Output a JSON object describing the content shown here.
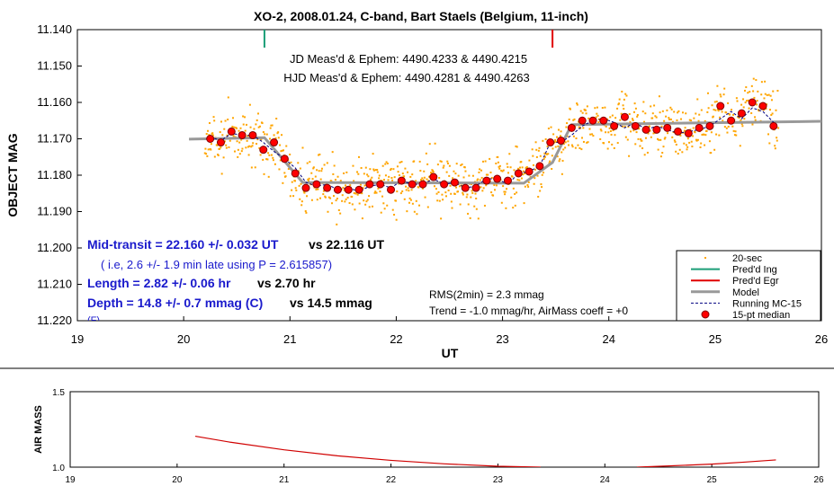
{
  "title": "XO-2, 2008.01.24, C-band, Bart Staels (Belgium, 11-inch)",
  "colors": {
    "scatter": "#ffa500",
    "ingress": "#1b9e77",
    "egress": "#e00000",
    "model": "#999999",
    "running": "#000080",
    "median_fill": "#ff0000",
    "median_stroke": "#800000",
    "airmass_line": "#d00000",
    "blue_text": "#1a1acc"
  },
  "jd_lines": [
    "JD Meas'd & Ephem: 4490.4233 & 4490.4215",
    "HJD Meas'd & Ephem: 4490.4281 & 4490.4263"
  ],
  "results": {
    "mid_transit": "Mid-transit = 22.160 +/- 0.032 UT",
    "mid_transit_ref": "vs 22.116 UT",
    "late_note": "( i.e, 2.6 +/- 1.9 min late using P = 2.615857)",
    "length": "Length = 2.82 +/- 0.06 hr",
    "length_ref": "vs 2.70 hr",
    "depth": "Depth = 14.8 +/- 0.7 mmag (C)",
    "depth_ref": "vs 14.5 mmag",
    "clipped": "(F)"
  },
  "stats": {
    "rms": "RMS(2min) = 2.3 mmag",
    "trend": "Trend = -1.0 mmag/hr, AirMass coeff = +0"
  },
  "legend": [
    {
      "label": "20-sec",
      "kind": "dot"
    },
    {
      "label": "Pred'd Ing",
      "kind": "ingress"
    },
    {
      "label": "Pred'd Egr",
      "kind": "egress"
    },
    {
      "label": "Model",
      "kind": "model"
    },
    {
      "label": "Running MC-15",
      "kind": "running"
    },
    {
      "label": "15-pt median",
      "kind": "median"
    }
  ],
  "chart_data": [
    {
      "type": "scatter",
      "title": "XO-2, 2008.01.24, C-band, Bart Staels (Belgium, 11-inch)",
      "xlabel": "UT",
      "ylabel": "OBJECT MAG",
      "xlim": [
        19,
        26
      ],
      "ylim": [
        11.14,
        11.22
      ],
      "y_inverted": true,
      "x_ticks": [
        "19",
        "20",
        "21",
        "22",
        "23",
        "24",
        "25",
        "26"
      ],
      "y_ticks": [
        "11.140",
        "11.150",
        "11.160",
        "11.170",
        "11.180",
        "11.190",
        "11.200",
        "11.210",
        "11.220"
      ],
      "grid": false,
      "legend_position": "bottom-right",
      "predicted_ingress_ut": 20.76,
      "predicted_egress_ut": 23.47,
      "series": [
        {
          "name": "Model",
          "x": [
            20.05,
            20.76,
            21.12,
            23.2,
            23.47,
            23.65,
            26.0
          ],
          "values": [
            11.1701,
            11.1697,
            11.182,
            11.1822,
            11.1765,
            11.1661,
            11.1652
          ]
        },
        {
          "name": "Running MC-15",
          "x": [
            20.25,
            20.35,
            20.45,
            20.55,
            20.65,
            20.75,
            20.85,
            20.95,
            21.05,
            21.15,
            21.25,
            21.35,
            21.45,
            21.55,
            21.65,
            21.75,
            21.85,
            21.95,
            22.05,
            22.15,
            22.25,
            22.35,
            22.45,
            22.55,
            22.65,
            22.75,
            22.85,
            22.95,
            23.05,
            23.15,
            23.25,
            23.35,
            23.45,
            23.55,
            23.65,
            23.75,
            23.85,
            23.95,
            24.05,
            24.15,
            24.25,
            24.35,
            24.45,
            24.55,
            24.65,
            24.75,
            24.85,
            24.95,
            25.05,
            25.15,
            25.25,
            25.35,
            25.45,
            25.55
          ],
          "values": [
            11.1695,
            11.1705,
            11.1685,
            11.169,
            11.169,
            11.171,
            11.1735,
            11.1755,
            11.178,
            11.182,
            11.183,
            11.1825,
            11.184,
            11.1835,
            11.1845,
            11.183,
            11.1825,
            11.1835,
            11.1815,
            11.1825,
            11.1825,
            11.181,
            11.1825,
            11.182,
            11.1835,
            11.183,
            11.181,
            11.181,
            11.1825,
            11.1795,
            11.179,
            11.1775,
            11.171,
            11.171,
            11.169,
            11.1665,
            11.165,
            11.1645,
            11.1655,
            11.167,
            11.1655,
            11.1675,
            11.1665,
            11.1675,
            11.1685,
            11.168,
            11.1675,
            11.1665,
            11.1645,
            11.1625,
            11.1645,
            11.1615,
            11.1625,
            11.1655
          ]
        },
        {
          "name": "15-pt median",
          "x": [
            20.25,
            20.35,
            20.45,
            20.55,
            20.65,
            20.75,
            20.85,
            20.95,
            21.05,
            21.15,
            21.25,
            21.35,
            21.45,
            21.55,
            21.65,
            21.75,
            21.85,
            21.95,
            22.05,
            22.15,
            22.25,
            22.35,
            22.45,
            22.55,
            22.65,
            22.75,
            22.85,
            22.95,
            23.05,
            23.15,
            23.25,
            23.35,
            23.45,
            23.55,
            23.65,
            23.75,
            23.85,
            23.95,
            24.05,
            24.15,
            24.25,
            24.35,
            24.45,
            24.55,
            24.65,
            24.75,
            24.85,
            24.95,
            25.05,
            25.15,
            25.25,
            25.35,
            25.45,
            25.55
          ],
          "values": [
            11.17,
            11.171,
            11.168,
            11.169,
            11.169,
            11.173,
            11.171,
            11.1755,
            11.1795,
            11.1835,
            11.1825,
            11.1835,
            11.184,
            11.184,
            11.184,
            11.1825,
            11.1825,
            11.184,
            11.1815,
            11.1825,
            11.1825,
            11.1805,
            11.1825,
            11.182,
            11.1835,
            11.1835,
            11.1815,
            11.181,
            11.1815,
            11.1795,
            11.179,
            11.1775,
            11.171,
            11.1705,
            11.167,
            11.165,
            11.165,
            11.165,
            11.1665,
            11.164,
            11.1665,
            11.1675,
            11.1675,
            11.167,
            11.168,
            11.1685,
            11.167,
            11.1665,
            11.161,
            11.165,
            11.163,
            11.16,
            11.161,
            11.1665
          ]
        },
        {
          "name": "20-sec",
          "values_note": "about 1000 individual 20-second magnitudes scattered roughly +/- 0.007 mag around the median curve between 20.2 and 25.6 UT"
        }
      ]
    },
    {
      "type": "line",
      "xlabel": "",
      "ylabel": "AIR MASS",
      "xlim": [
        19,
        26
      ],
      "ylim": [
        1.0,
        1.5
      ],
      "x_ticks": [
        "19",
        "20",
        "21",
        "22",
        "23",
        "24",
        "25",
        "26"
      ],
      "y_ticks": [
        "1.0",
        "1.5"
      ],
      "series": [
        {
          "x": [
            20.17,
            20.5,
            21.0,
            21.5,
            22.0,
            22.5,
            23.0,
            23.4
          ],
          "values": [
            1.205,
            1.165,
            1.115,
            1.075,
            1.045,
            1.022,
            1.006,
            1.0
          ]
        },
        {
          "x": [
            24.3,
            24.6,
            25.0,
            25.3,
            25.6
          ],
          "values": [
            1.0,
            1.008,
            1.02,
            1.033,
            1.048
          ]
        }
      ]
    }
  ]
}
